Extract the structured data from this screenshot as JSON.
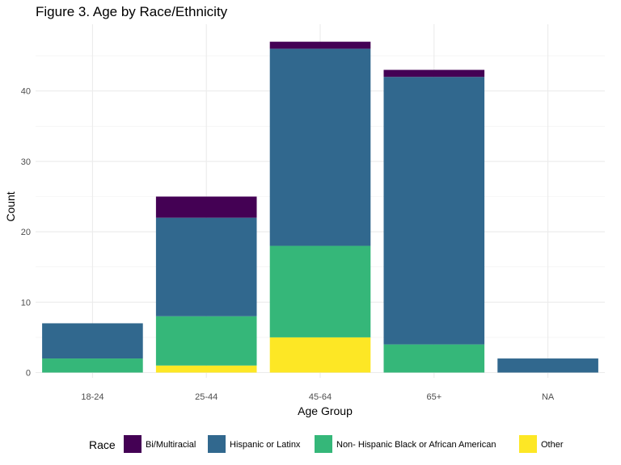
{
  "chart_data": {
    "type": "bar",
    "stacked": true,
    "title": "Figure 3. Age by Race/Ethnicity",
    "xlabel": "Age Group",
    "ylabel": "Count",
    "categories": [
      "18-24",
      "25-44",
      "45-64",
      "65+",
      "NA"
    ],
    "yticks": [
      0,
      10,
      20,
      30,
      40
    ],
    "ylim": [
      0,
      47
    ],
    "grid": true,
    "legend": {
      "title": "Race",
      "position": "bottom"
    },
    "series": [
      {
        "name": "Other",
        "color": "#FDE725",
        "values": [
          0,
          1,
          5,
          0,
          0
        ]
      },
      {
        "name": "Non- Hispanic Black or African American",
        "color": "#35B779",
        "values": [
          2,
          7,
          13,
          4,
          0
        ]
      },
      {
        "name": "Hispanic or Latinx",
        "color": "#31688E",
        "values": [
          5,
          14,
          28,
          38,
          2
        ]
      },
      {
        "name": "Bi/Multiracial",
        "color": "#440154",
        "values": [
          0,
          3,
          1,
          1,
          0
        ]
      }
    ],
    "legend_order": [
      "Bi/Multiracial",
      "Hispanic or Latinx",
      "Non- Hispanic Black or African American",
      "Other"
    ]
  }
}
